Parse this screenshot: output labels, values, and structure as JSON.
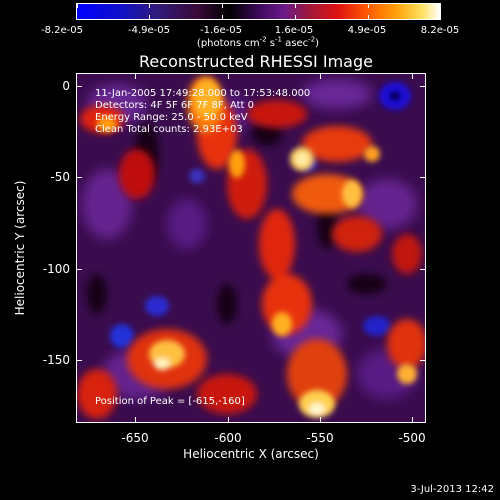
{
  "colorbar": {
    "tick_labels": [
      "-8.2e-05",
      "-4.9e-05",
      "-1.6e-05",
      "1.6e-05",
      "4.9e-05",
      "8.2e-05"
    ],
    "units_prefix": "(photons cm",
    "units_exp1": "-2",
    "units_mid": " s",
    "units_exp2": "-1",
    "units_mid2": " asec",
    "units_exp3": "-2",
    "units_suffix": ")",
    "colors": {
      "min": "#0000ff",
      "mid": "#000000",
      "max": "#ffffff"
    }
  },
  "title": "Reconstructed RHESSI Image",
  "overlay": {
    "line1": "11-Jan-2005 17:49:28.000 to 17:53:48.000",
    "line2": "Detectors: 4F 5F 6F 7F 8F, Att 0",
    "line3": "Energy Range: 25.0 - 50.0 keV",
    "line4": "Clean    Total counts: 2.93E+03",
    "peak": "Position of Peak = [-615,-160]"
  },
  "axes": {
    "xlabel": "Heliocentric X (arcsec)",
    "ylabel": "Heliocentric Y (arcsec)",
    "xticks": [
      "-650",
      "-600",
      "-550",
      "-500"
    ],
    "yticks": [
      "0",
      "-50",
      "-100",
      "-150"
    ],
    "x_range": [
      -663,
      -475
    ],
    "y_range": [
      -188,
      8
    ]
  },
  "timestamp": "3-Jul-2013 12:42"
}
